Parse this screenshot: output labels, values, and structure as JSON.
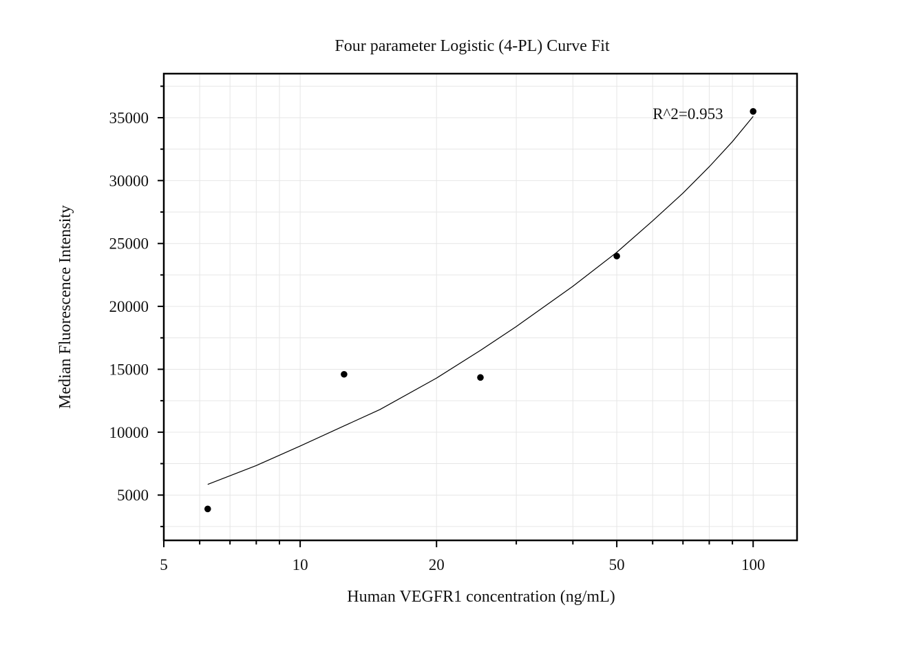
{
  "chart_data": {
    "type": "scatter",
    "title": "Four parameter Logistic (4-PL) Curve Fit",
    "xlabel": "Human VEGFR1 concentration (ng/mL)",
    "ylabel": "Median Fluorescence Intensity",
    "x_scale": "log",
    "xlim": [
      5,
      125
    ],
    "ylim": [
      1400,
      38500
    ],
    "x_ticks": [
      5,
      10,
      20,
      50,
      100
    ],
    "x_tick_labels": [
      "5",
      "10",
      "20",
      "50",
      "100"
    ],
    "y_ticks": [
      5000,
      10000,
      15000,
      20000,
      25000,
      30000,
      35000
    ],
    "y_tick_labels": [
      "5000",
      "10000",
      "15000",
      "20000",
      "25000",
      "30000",
      "35000"
    ],
    "grid": true,
    "points": {
      "x": [
        6.25,
        12.5,
        25,
        50,
        100
      ],
      "y": [
        3900,
        14600,
        14350,
        24000,
        35500
      ],
      "color": "#000000"
    },
    "fit_curve": {
      "x": [
        6.25,
        8,
        10,
        12.5,
        15,
        20,
        25,
        30,
        40,
        50,
        60,
        70,
        80,
        90,
        100
      ],
      "y": [
        5850,
        7350,
        8900,
        10500,
        11800,
        14300,
        16500,
        18400,
        21600,
        24300,
        26800,
        29000,
        31100,
        33100,
        35100
      ],
      "color": "#000000"
    },
    "annotations": [
      {
        "text": "R^2=0.953",
        "x": 60,
        "y": 34900
      }
    ]
  }
}
